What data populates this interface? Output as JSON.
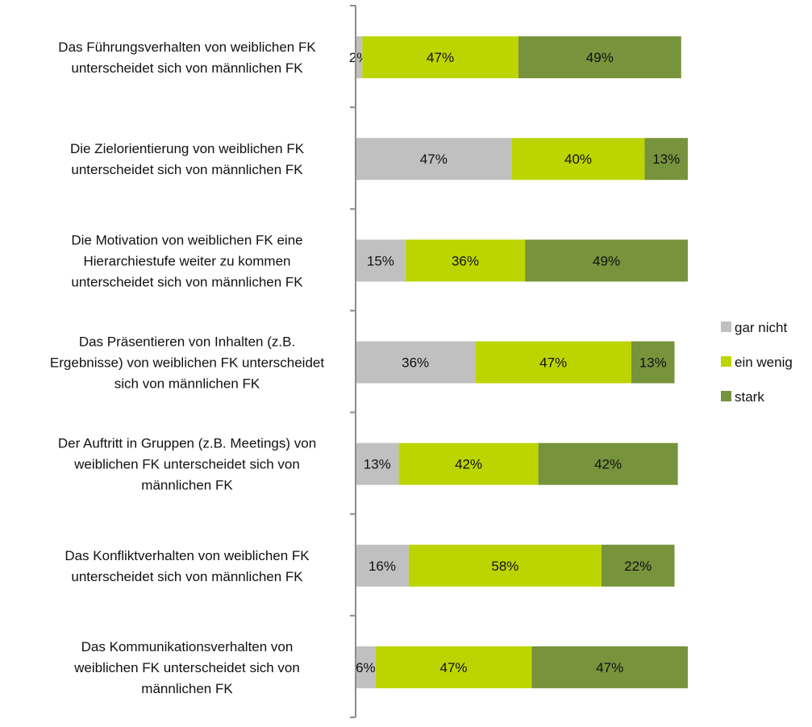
{
  "chart_data": {
    "type": "bar",
    "orientation": "horizontal",
    "stacked": true,
    "categories": [
      [
        "Das Führungsverhalten von weiblichen FK",
        "unterscheidet sich von männlichen FK"
      ],
      [
        "Die Zielorientierung von weiblichen FK",
        "unterscheidet sich von männlichen FK"
      ],
      [
        "Die Motivation von weiblichen FK eine",
        "Hierarchiestufe weiter zu kommen",
        "unterscheidet sich von männlichen FK"
      ],
      [
        "Das Präsentieren von Inhalten (z.B.",
        "Ergebnisse) von weiblichen FK unterscheidet",
        "sich von männlichen FK"
      ],
      [
        "Der Auftritt in Gruppen (z.B. Meetings) von",
        "weiblichen FK unterscheidet sich von",
        "männlichen FK"
      ],
      [
        "Das Konfliktverhalten von weiblichen FK",
        "unterscheidet sich von männlichen FK"
      ],
      [
        "Das Kommunikationsverhalten von",
        "weiblichen FK unterscheidet sich von",
        "männlichen FK"
      ]
    ],
    "series": [
      {
        "name": "gar nicht",
        "color": "#c0c0c0",
        "values": [
          2,
          47,
          15,
          36,
          13,
          16,
          6
        ]
      },
      {
        "name": "ein wenig",
        "color": "#bcd500",
        "values": [
          47,
          40,
          36,
          47,
          42,
          58,
          47
        ]
      },
      {
        "name": "stark",
        "color": "#77933c",
        "values": [
          49,
          13,
          49,
          13,
          42,
          22,
          47
        ]
      }
    ],
    "value_format": "{v}%",
    "xlim": [
      0,
      100
    ],
    "grid": false,
    "legend": "right",
    "title": "",
    "xlabel": "",
    "ylabel": ""
  }
}
